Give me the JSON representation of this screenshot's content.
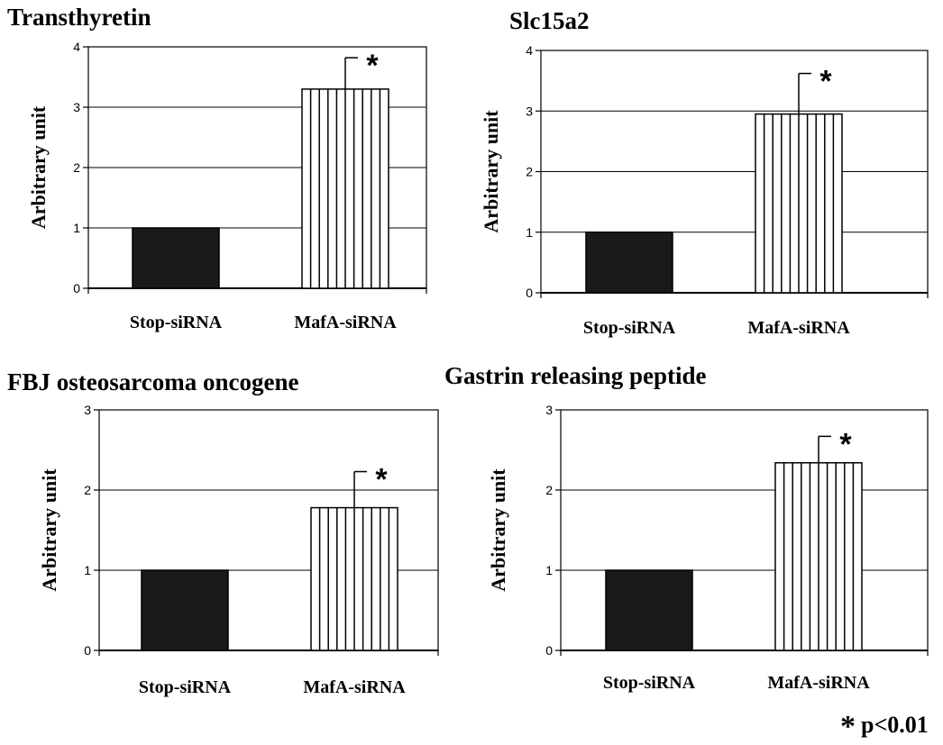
{
  "footnote": {
    "symbol": "*",
    "text": "p<0.01"
  },
  "chart_data": [
    {
      "type": "bar",
      "title": "Transthyretin",
      "ylabel": "Arbitrary unit",
      "xlabel": "",
      "categories": [
        "Stop-siRNA",
        "MafA-siRNA"
      ],
      "values": [
        1,
        3.3
      ],
      "error": [
        0,
        0.52
      ],
      "significance": [
        "",
        "*"
      ],
      "ylim": [
        0,
        4
      ],
      "yticks": [
        0,
        1,
        2,
        3,
        4
      ],
      "grid": true,
      "bar_colors": [
        "#1a1a1a",
        "#ffffff"
      ]
    },
    {
      "type": "bar",
      "title": "Slc15a2",
      "ylabel": "Arbitrary unit",
      "xlabel": "",
      "categories": [
        "Stop-siRNA",
        "MafA-siRNA"
      ],
      "values": [
        1,
        2.95
      ],
      "error": [
        0,
        0.67
      ],
      "significance": [
        "",
        "*"
      ],
      "ylim": [
        0,
        4
      ],
      "yticks": [
        0,
        1,
        2,
        3,
        4
      ],
      "grid": true,
      "bar_colors": [
        "#1a1a1a",
        "#ffffff"
      ]
    },
    {
      "type": "bar",
      "title": "FBJ osteosarcoma oncogene",
      "ylabel": "Arbitrary unit",
      "xlabel": "",
      "categories": [
        "Stop-siRNA",
        "MafA-siRNA"
      ],
      "values": [
        1,
        1.78
      ],
      "error": [
        0,
        0.45
      ],
      "significance": [
        "",
        "*"
      ],
      "ylim": [
        0,
        3
      ],
      "yticks": [
        0,
        1,
        2,
        3
      ],
      "grid": true,
      "bar_colors": [
        "#1a1a1a",
        "#ffffff"
      ]
    },
    {
      "type": "bar",
      "title": "Gastrin releasing peptide",
      "ylabel": "Arbitrary unit",
      "xlabel": "",
      "categories": [
        "Stop-siRNA",
        "MafA-siRNA"
      ],
      "values": [
        1,
        2.34
      ],
      "error": [
        0,
        0.33
      ],
      "significance": [
        "",
        "*"
      ],
      "ylim": [
        0,
        3
      ],
      "yticks": [
        0,
        1,
        2,
        3
      ],
      "grid": true,
      "bar_colors": [
        "#1a1a1a",
        "#ffffff"
      ]
    }
  ]
}
